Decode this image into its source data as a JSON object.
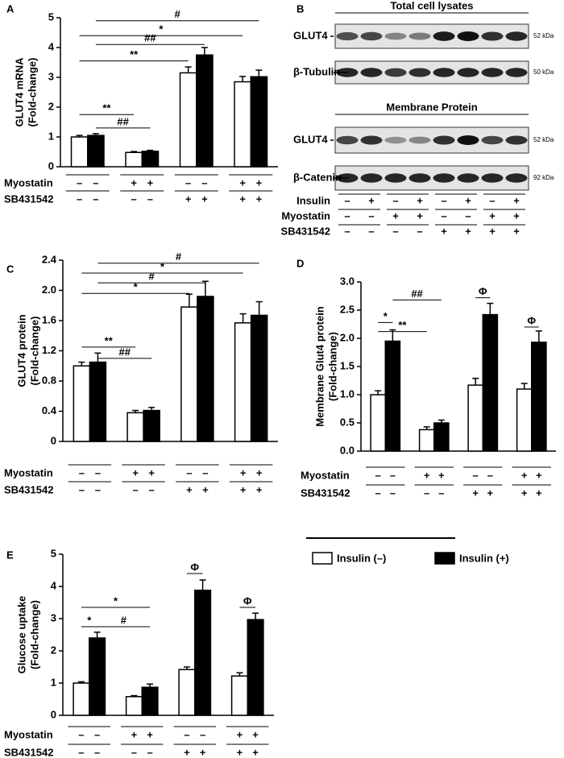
{
  "chart_data": [
    {
      "type": "bar",
      "panel": "A",
      "ylabel": "GLUT4 mRNA",
      "ylabel_sub": "(Fold-change)",
      "ylim": [
        0,
        5
      ],
      "yticks": [
        0,
        1,
        2,
        3,
        4,
        5
      ],
      "series": [
        {
          "color": "#ffffff",
          "values": [
            1.0,
            0.48,
            3.15,
            2.85
          ],
          "errors": [
            0.05,
            0.03,
            0.2,
            0.18
          ]
        },
        {
          "color": "#000000",
          "values": [
            1.05,
            0.52,
            3.75,
            3.02
          ],
          "errors": [
            0.06,
            0.03,
            0.25,
            0.22
          ]
        }
      ],
      "annotations": [
        "#",
        "*",
        "##",
        "**",
        "**",
        "##"
      ],
      "treatments": [
        {
          "label": "Myostatin",
          "signs": [
            "–",
            "–",
            "+",
            "+",
            "–",
            "–",
            "+",
            "+"
          ]
        },
        {
          "label": "SB431542",
          "signs": [
            "–",
            "–",
            "–",
            "–",
            "+",
            "+",
            "+",
            "+"
          ]
        }
      ]
    },
    {
      "type": "bar",
      "panel": "C",
      "ylabel": "GLUT4 protein",
      "ylabel_sub": "(Fold-change)",
      "ylim": [
        0,
        2.4
      ],
      "yticks": [
        0,
        0.4,
        0.8,
        1.2,
        1.6,
        {
          "value": 2,
          "label": "2.0"
        },
        2.4
      ],
      "series": [
        {
          "color": "#ffffff",
          "values": [
            1.0,
            0.38,
            1.78,
            1.57
          ],
          "errors": [
            0.05,
            0.03,
            0.17,
            0.12
          ]
        },
        {
          "color": "#000000",
          "values": [
            1.05,
            0.41,
            1.92,
            1.67
          ],
          "errors": [
            0.12,
            0.04,
            0.2,
            0.18
          ]
        }
      ],
      "annotations": [
        "#",
        "*",
        "#",
        "*",
        "**",
        "##"
      ],
      "treatments": [
        {
          "label": "Myostatin",
          "signs": [
            "–",
            "–",
            "+",
            "+",
            "–",
            "–",
            "+",
            "+"
          ]
        },
        {
          "label": "SB431542",
          "signs": [
            "–",
            "–",
            "–",
            "–",
            "+",
            "+",
            "+",
            "+"
          ]
        }
      ]
    },
    {
      "type": "bar",
      "panel": "D",
      "ylabel": "Membrane Glut4 protein",
      "ylabel_sub": "(Fold-change)",
      "ylim": [
        0,
        3
      ],
      "yticks": [
        {
          "value": 0,
          "label": "0.0"
        },
        0.5,
        {
          "value": 1,
          "label": "1.0"
        },
        1.5,
        {
          "value": 2,
          "label": "2.0"
        },
        2.5,
        {
          "value": 3,
          "label": "3.0"
        }
      ],
      "series": [
        {
          "color": "#ffffff",
          "values": [
            1.0,
            0.38,
            1.17,
            1.1
          ],
          "errors": [
            0.07,
            0.05,
            0.12,
            0.1
          ]
        },
        {
          "color": "#000000",
          "values": [
            1.95,
            0.5,
            2.42,
            1.93
          ],
          "errors": [
            0.2,
            0.05,
            0.2,
            0.2
          ]
        }
      ],
      "annotations": [
        "*",
        "**",
        "##",
        "Φ",
        "Φ"
      ],
      "treatments": [
        {
          "label": "Myostatin",
          "signs": [
            "–",
            "–",
            "+",
            "+",
            "–",
            "–",
            "+",
            "+"
          ]
        },
        {
          "label": "SB431542",
          "signs": [
            "–",
            "–",
            "–",
            "–",
            "+",
            "+",
            "+",
            "+"
          ]
        }
      ]
    },
    {
      "type": "bar",
      "panel": "E",
      "ylabel": "Glucose uptake",
      "ylabel_sub": "(Fold-change)",
      "ylim": [
        0,
        5
      ],
      "yticks": [
        0,
        1,
        2,
        3,
        4,
        5
      ],
      "series": [
        {
          "color": "#ffffff",
          "values": [
            1.0,
            0.58,
            1.42,
            1.22
          ],
          "errors": [
            0.04,
            0.03,
            0.08,
            0.1
          ]
        },
        {
          "color": "#000000",
          "values": [
            2.4,
            0.87,
            3.88,
            2.97
          ],
          "errors": [
            0.18,
            0.1,
            0.32,
            0.2
          ]
        }
      ],
      "annotations": [
        "*",
        "*",
        "#",
        "Φ",
        "Φ"
      ],
      "treatments": [
        {
          "label": "Myostatin",
          "signs": [
            "–",
            "–",
            "+",
            "+",
            "–",
            "–",
            "+",
            "+"
          ]
        },
        {
          "label": "SB431542",
          "signs": [
            "–",
            "–",
            "–",
            "–",
            "+",
            "+",
            "+",
            "+"
          ]
        }
      ]
    }
  ],
  "blot": {
    "panel": "B",
    "sections": [
      {
        "title": "Total cell lysates",
        "rows": [
          {
            "label": "GLUT4",
            "size": "52 kDa"
          },
          {
            "label": "β-Tubulin",
            "size": "50 kDa"
          }
        ]
      },
      {
        "title": "Membrane Protein",
        "rows": [
          {
            "label": "GLUT4",
            "size": "52 kDa"
          },
          {
            "label": "β-Catenin",
            "size": "92 kDa"
          }
        ]
      }
    ],
    "treatments": [
      {
        "label": "Insulin",
        "signs": [
          "–",
          "+",
          "–",
          "+",
          "–",
          "+",
          "–",
          "+"
        ]
      },
      {
        "label": "Myostatin",
        "signs": [
          "–",
          "–",
          "+",
          "+",
          "–",
          "–",
          "+",
          "+"
        ]
      },
      {
        "label": "SB431542",
        "signs": [
          "–",
          "–",
          "–",
          "–",
          "+",
          "+",
          "+",
          "+"
        ]
      }
    ]
  },
  "legend": {
    "entries": [
      {
        "name": "Insulin (–)",
        "color": "#ffffff"
      },
      {
        "name": "Insulin (+)",
        "color": "#000000"
      }
    ]
  }
}
